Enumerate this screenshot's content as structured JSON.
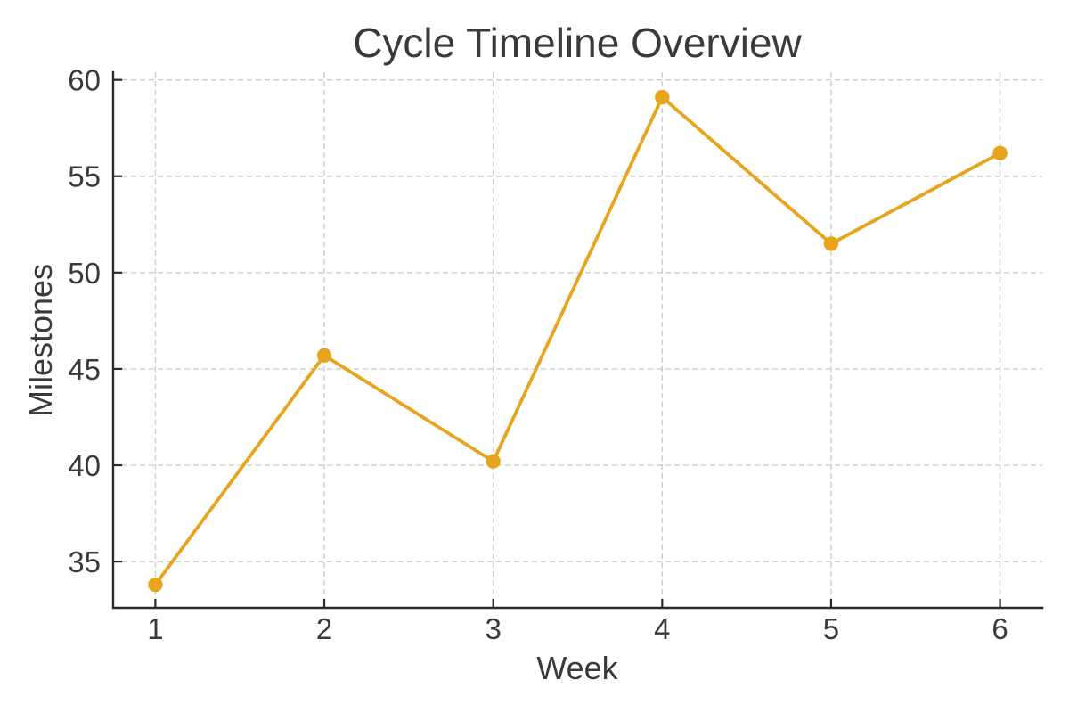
{
  "chart_data": {
    "type": "line",
    "title": "Cycle Timeline Overview",
    "xlabel": "Week",
    "ylabel": "Milestones",
    "x": [
      1,
      2,
      3,
      4,
      5,
      6
    ],
    "series": [
      {
        "name": "Milestones",
        "values": [
          33.8,
          45.7,
          40.2,
          59.1,
          51.5,
          56.2
        ]
      }
    ],
    "xticks": [
      1,
      2,
      3,
      4,
      5,
      6
    ],
    "yticks": [
      35,
      40,
      45,
      50,
      55,
      60
    ],
    "xlim": [
      0.75,
      6.25
    ],
    "ylim": [
      32.6,
      60.4
    ],
    "grid": "dashed",
    "legend": "none",
    "colors": {
      "line": "#E8A41C",
      "marker": "#E8A41C",
      "grid": "#cccccc",
      "spine": "#2b2b2b",
      "text": "#3a3a3a",
      "background": "#ffffff"
    }
  }
}
